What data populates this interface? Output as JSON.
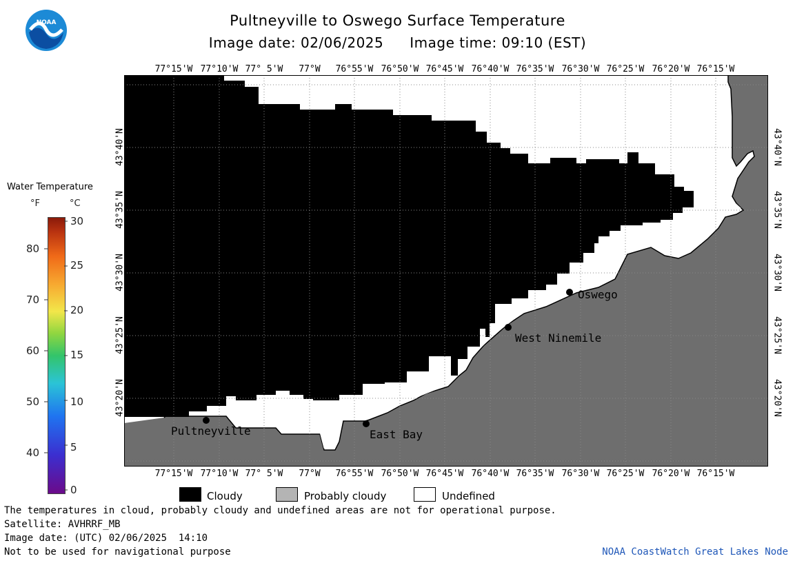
{
  "header": {
    "title": "Pultneyville to Oswego Surface Temperature",
    "image_date_label": "Image date: 02/06/2025",
    "image_time_label": "Image time: 09:10 (EST)"
  },
  "logo": {
    "text": "NOAA"
  },
  "map": {
    "lon_labels": [
      "77°15'W",
      "77°10'W",
      "77° 5'W",
      "77°W",
      "76°55'W",
      "76°50'W",
      "76°45'W",
      "76°40'W",
      "76°35'W",
      "76°30'W",
      "76°25'W",
      "76°20'W",
      "76°15'W"
    ],
    "lat_labels": [
      "43°40'N",
      "43°35'N",
      "43°30'N",
      "43°25'N",
      "43°20'N"
    ],
    "places": [
      {
        "name": "Pultneyville"
      },
      {
        "name": "East Bay"
      },
      {
        "name": "West Ninemile"
      },
      {
        "name": "Oswego"
      }
    ],
    "colors": {
      "cloudy": "#000000",
      "land": "#6e6e6e",
      "undefined": "#ffffff"
    }
  },
  "colorbar": {
    "title": "Water Temperature",
    "f_label": "°F",
    "c_label": "°C",
    "f_ticks": [
      "80",
      "70",
      "60",
      "50",
      "40"
    ],
    "c_ticks": [
      "30",
      "25",
      "20",
      "15",
      "10",
      "5",
      "0"
    ]
  },
  "legend": [
    {
      "label": "Cloudy",
      "color": "#000000"
    },
    {
      "label": "Probably cloudy",
      "color": "#b4b4b4"
    },
    {
      "label": "Undefined",
      "color": "#ffffff"
    }
  ],
  "footer": {
    "note": "The temperatures in cloud, probably cloudy and undefined areas are not for operational purpose.",
    "satellite": "Satellite: AVHRRF_MB",
    "utc_date": "Image date: (UTC) 02/06/2025  14:10",
    "nav": "Not to be used for navigational purpose",
    "credit": "NOAA CoastWatch Great Lakes Node"
  }
}
